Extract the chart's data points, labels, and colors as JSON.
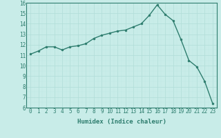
{
  "x": [
    0,
    1,
    2,
    3,
    4,
    5,
    6,
    7,
    8,
    9,
    10,
    11,
    12,
    13,
    14,
    15,
    16,
    17,
    18,
    19,
    20,
    21,
    22,
    23
  ],
  "y": [
    11.1,
    11.4,
    11.8,
    11.8,
    11.5,
    11.8,
    11.9,
    12.1,
    12.6,
    12.9,
    13.1,
    13.3,
    13.4,
    13.7,
    14.0,
    14.8,
    15.8,
    14.9,
    14.3,
    12.5,
    10.5,
    9.9,
    8.5,
    6.4
  ],
  "xlabel": "Humidex (Indice chaleur)",
  "ylim": [
    6,
    16
  ],
  "xlim": [
    -0.5,
    23.5
  ],
  "yticks": [
    6,
    7,
    8,
    9,
    10,
    11,
    12,
    13,
    14,
    15,
    16
  ],
  "xticks": [
    0,
    1,
    2,
    3,
    4,
    5,
    6,
    7,
    8,
    9,
    10,
    11,
    12,
    13,
    14,
    15,
    16,
    17,
    18,
    19,
    20,
    21,
    22,
    23
  ],
  "line_color": "#2e7d6e",
  "bg_color": "#c8ece8",
  "grid_major_color": "#b0ddd8",
  "grid_minor_color": "#c0e8e4",
  "axis_color": "#2e7d6e",
  "label_color": "#2e7d6e",
  "tick_fontsize": 5.5,
  "xlabel_fontsize": 6.5,
  "linewidth": 1.0,
  "markersize": 2.0
}
